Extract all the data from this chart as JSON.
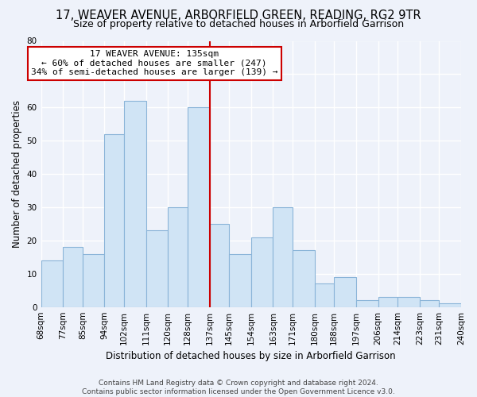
{
  "title": "17, WEAVER AVENUE, ARBORFIELD GREEN, READING, RG2 9TR",
  "subtitle": "Size of property relative to detached houses in Arborfield Garrison",
  "xlabel": "Distribution of detached houses by size in Arborfield Garrison",
  "ylabel": "Number of detached properties",
  "bins": [
    68,
    77,
    85,
    94,
    102,
    111,
    120,
    128,
    137,
    145,
    154,
    163,
    171,
    180,
    188,
    197,
    206,
    214,
    223,
    231,
    240
  ],
  "bin_labels": [
    "68sqm",
    "77sqm",
    "85sqm",
    "94sqm",
    "102sqm",
    "111sqm",
    "120sqm",
    "128sqm",
    "137sqm",
    "145sqm",
    "154sqm",
    "163sqm",
    "171sqm",
    "180sqm",
    "188sqm",
    "197sqm",
    "206sqm",
    "214sqm",
    "223sqm",
    "231sqm",
    "240sqm"
  ],
  "values": [
    14,
    18,
    16,
    52,
    62,
    23,
    30,
    60,
    25,
    16,
    21,
    30,
    17,
    7,
    9,
    2,
    3,
    3,
    2,
    1
  ],
  "bar_color": "#d0e4f5",
  "bar_edge_color": "#8ab4d8",
  "vline_x": 137,
  "vline_color": "#cc0000",
  "annotation_line1": "17 WEAVER AVENUE: 135sqm",
  "annotation_line2": "← 60% of detached houses are smaller (247)",
  "annotation_line3": "34% of semi-detached houses are larger (139) →",
  "annotation_box_color": "#ffffff",
  "annotation_box_edge": "#cc0000",
  "ylim": [
    0,
    80
  ],
  "yticks": [
    0,
    10,
    20,
    30,
    40,
    50,
    60,
    70,
    80
  ],
  "footer": "Contains HM Land Registry data © Crown copyright and database right 2024.\nContains public sector information licensed under the Open Government Licence v3.0.",
  "bg_color": "#eef2fa",
  "plot_bg_color": "#eef2fa",
  "title_fontsize": 10.5,
  "subtitle_fontsize": 9,
  "xlabel_fontsize": 8.5,
  "ylabel_fontsize": 8.5,
  "tick_fontsize": 7.5,
  "footer_fontsize": 6.5,
  "annotation_fontsize": 8
}
